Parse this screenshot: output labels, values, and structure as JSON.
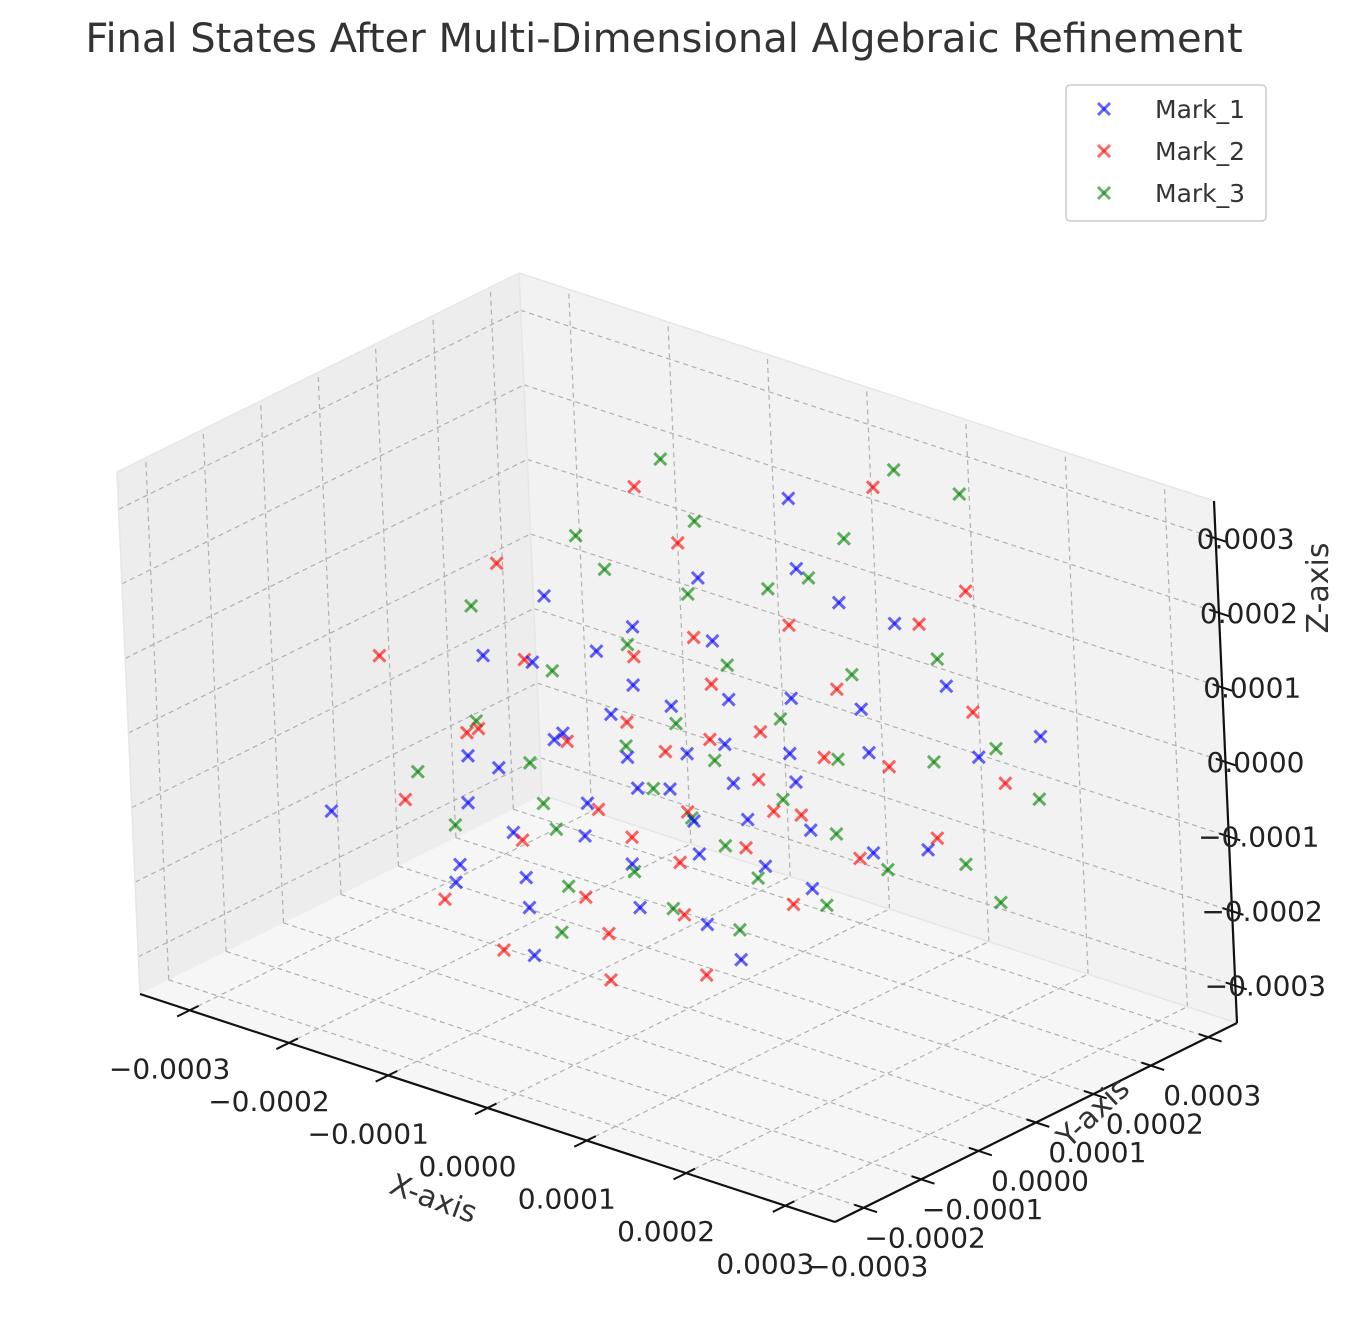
{
  "chart_data": {
    "type": "scatter",
    "title": "Final States After Multi-Dimensional Algebraic Refinement",
    "xlabel": "X-axis",
    "ylabel": "Y-axis",
    "zlabel": "Z-axis",
    "xlim": [
      -0.00035,
      0.00035
    ],
    "ylim": [
      -0.00035,
      0.00035
    ],
    "zlim": [
      -0.00035,
      0.00035
    ],
    "x_ticks": [
      "−0.0003",
      "−0.0002",
      "−0.0001",
      "0.0000",
      "0.0001",
      "0.0002",
      "0.0003"
    ],
    "y_ticks": [
      "−0.0003",
      "−0.0002",
      "−0.0001",
      "0.0000",
      "0.0001",
      "0.0002",
      "0.0003"
    ],
    "z_ticks": [
      "−0.0003",
      "−0.0002",
      "−0.0001",
      "0.0000",
      "0.0001",
      "0.0002",
      "0.0003"
    ],
    "x_tick_values": [
      -0.0003,
      -0.0002,
      -0.0001,
      0,
      0.0001,
      0.0002,
      0.0003
    ],
    "y_tick_values": [
      -0.0003,
      -0.0002,
      -0.0001,
      0,
      0.0001,
      0.0002,
      0.0003
    ],
    "z_tick_values": [
      -0.0003,
      -0.0002,
      -0.0001,
      0,
      0.0001,
      0.0002,
      0.0003
    ],
    "grid": true,
    "legend_position": "top-right",
    "marker": "x",
    "series": [
      {
        "name": "Mark_1",
        "color": "#0000ff",
        "points": [
          [
            -0.00029,
            -0.00011,
            -0.00017
          ],
          [
            -0.000205,
            -1.5e-05,
            -9.5e-05
          ],
          [
            -0.00021,
            0.000135,
            6e-05
          ],
          [
            -0.000195,
            2e-05,
            -0.00012
          ],
          [
            -0.00017,
            -9.5e-05,
            -0.000195
          ],
          [
            -0.00016,
            -0.00012,
            -0.000205
          ],
          [
            -0.00015,
            1e-05,
            4.5e-05
          ],
          [
            -0.00014,
            2.5e-05,
            -6e-05
          ],
          [
            -0.000135,
            -6e-05,
            -0.00015
          ],
          [
            -0.00012,
            7e-05,
            5e-05
          ],
          [
            -0.00011,
            -1e-05,
            -2.5e-05
          ],
          [
            -0.0001,
            0.0001,
            8e-05
          ],
          [
            -9e-05,
            4e-05,
            -1e-05
          ],
          [
            -8e-05,
            -0.00013,
            -0.0002
          ],
          [
            -7.5e-05,
            5.5e-05,
            3e-05
          ],
          [
            -7e-05,
            -4e-05,
            -9e-05
          ],
          [
            -6e-05,
            1.5e-05,
            -4.5e-05
          ],
          [
            -5.5e-05,
            0.00014,
            0.00015
          ],
          [
            -5e-05,
            -8e-05,
            -0.00011
          ],
          [
            -4e-05,
            6e-05,
            1.5e-05
          ],
          [
            -3e-05,
            -2e-05,
            -6e-05
          ],
          [
            -2.5e-05,
            0.00011,
            9e-05
          ],
          [
            -1.5e-05,
            -6e-05,
            -0.00014
          ],
          [
            -5e-06,
            2.5e-05,
            -2e-05
          ],
          [
            0.0,
            -1.5e-05,
            -5e-05
          ],
          [
            1e-05,
            7.5e-05,
            4e-05
          ],
          [
            1.5e-05,
            -0.0001,
            -0.00017
          ],
          [
            2.5e-05,
            4e-05,
            0.0
          ],
          [
            3.5e-05,
            -3.5e-05,
            -7e-05
          ],
          [
            4e-05,
            0.00015,
            0.0002
          ],
          [
            5e-05,
            1e-05,
            -3e-05
          ],
          [
            6e-05,
            -7e-05,
            -9e-05
          ],
          [
            6.5e-05,
            9e-05,
            6e-05
          ],
          [
            7.5e-05,
            -1e-05,
            -6e-05
          ],
          [
            8.5e-05,
            5e-05,
            1e-05
          ],
          [
            9.5e-05,
            -0.00012,
            -0.00015
          ],
          [
            0.000105,
            2.5e-05,
            -1e-05
          ],
          [
            0.000115,
            -5e-05,
            -9e-05
          ],
          [
            0.00013,
            0.0001,
            7e-05
          ],
          [
            0.000145,
            -2e-05,
            -4e-05
          ],
          [
            0.00016,
            6e-05,
            4e-05
          ],
          [
            0.00018,
            -8e-05,
            -8e-05
          ],
          [
            0.0002,
            0.00013,
            0.00012
          ],
          [
            0.00022,
            -4e-05,
            -3e-05
          ],
          [
            0.00026,
            8e-05,
            7e-05
          ],
          [
            0.0003,
            0.00012,
            0.0001
          ],
          [
            -0.00023,
            6e-05,
            0.0
          ],
          [
            -0.00018,
            -6e-05,
            -0.00013
          ],
          [
            -0.0001,
            -0.0001,
            -0.00018
          ],
          [
            7e-05,
            0.00017,
            0.00016
          ],
          [
            0.00014,
            -0.00014,
            -0.00017
          ],
          [
            0.00024,
            2e-05,
            -4e-05
          ],
          [
            -6.5e-05,
            -0.00015,
            -0.00025
          ],
          [
            5e-06,
            0.0002,
            0.00026
          ],
          [
            0.00012,
            0.00018,
            0.00015
          ]
        ]
      },
      {
        "name": "Mark_2",
        "color": "#ff0000",
        "points": [
          [
            -0.00033,
            5e-05,
            -4e-05
          ],
          [
            -0.00025,
            -5e-05,
            -0.00016
          ],
          [
            -0.00026,
            0.00014,
            8e-05
          ],
          [
            -0.0002,
            8e-05,
            0.0
          ],
          [
            -0.00019,
            -2e-05,
            -5e-05
          ],
          [
            -0.00016,
            -0.00014,
            -0.00022
          ],
          [
            -0.00014,
            0.00018,
            0.00022
          ],
          [
            -0.00013,
            3e-05,
            -6e-05
          ],
          [
            -0.00012,
            -7e-05,
            -0.00015
          ],
          [
            -0.0001,
            0.0001,
            4e-05
          ],
          [
            -9e-05,
            -0.00016,
            -0.00025
          ],
          [
            -8e-05,
            5e-05,
            -2e-05
          ],
          [
            -6.5e-05,
            -3e-05,
            -0.0001
          ],
          [
            -5e-05,
            0.00012,
            8e-05
          ],
          [
            -4e-05,
            -0.0001,
            -0.00018
          ],
          [
            -3e-05,
            3e-05,
            -3e-05
          ],
          [
            -2e-05,
            -5e-05,
            -0.00011
          ],
          [
            -1e-05,
            8e-05,
            5e-05
          ],
          [
            0.0,
            -0.00013,
            -0.0002
          ],
          [
            1e-05,
            4e-05,
            0.0
          ],
          [
            2e-05,
            -2e-05,
            -7e-05
          ],
          [
            3e-05,
            0.00015,
            0.00012
          ],
          [
            4e-05,
            -7e-05,
            -0.00011
          ],
          [
            5e-05,
            6e-05,
            2e-05
          ],
          [
            6e-05,
            -0.0001,
            -0.00016
          ],
          [
            7e-05,
            2e-05,
            -2e-05
          ],
          [
            8e-05,
            0.00022,
            0.0003
          ],
          [
            9e-05,
            -4e-05,
            -8e-05
          ],
          [
            0.0001,
            0.00011,
            8e-05
          ],
          [
            0.00011,
            -0.00015,
            -0.0002
          ],
          [
            0.00012,
            5e-05,
            2e-05
          ],
          [
            0.00013,
            -1e-05,
            -3e-05
          ],
          [
            0.000145,
            0.00018,
            0.00016
          ],
          [
            0.00016,
            -8e-05,
            -0.00011
          ],
          [
            0.00018,
            6e-05,
            3e-05
          ],
          [
            0.0002,
            -3e-05,
            -5e-05
          ],
          [
            0.00022,
            0.00014,
            9e-05
          ],
          [
            0.00025,
            2e-05,
            -2e-05
          ],
          [
            0.00028,
            9e-05,
            4e-05
          ],
          [
            -0.00011,
            0.0002,
            0.00015
          ],
          [
            3e-05,
            -0.00018,
            -0.00023
          ],
          [
            0.00017,
            0.00022,
            0.0002
          ],
          [
            -0.00022,
            1e-05,
            -8e-05
          ],
          [
            9e-05,
            1e-05,
            -5e-05
          ]
        ]
      },
      {
        "name": "Mark_3",
        "color": "#008000",
        "points": [
          [
            -0.00027,
            0.00011,
            3e-05
          ],
          [
            -0.00023,
            -6e-05,
            -0.00011
          ],
          [
            -0.00021,
            1e-05,
            -6e-05
          ],
          [
            -0.00019,
            0.00016,
            0.00014
          ],
          [
            -0.00017,
            -0.0001,
            -0.00014
          ],
          [
            -0.00016,
            6e-05,
            1e-05
          ],
          [
            -0.000145,
            -1e-05,
            -8e-05
          ],
          [
            -0.00013,
            0.00021,
            0.00025
          ],
          [
            -0.000115,
            -4e-05,
            -0.00011
          ],
          [
            -0.0001,
            9e-05,
            6e-05
          ],
          [
            -8.5e-05,
            -7e-05,
            -0.00012
          ],
          [
            -7e-05,
            3e-05,
            -4e-05
          ],
          [
            -6e-05,
            0.00013,
            0.00013
          ],
          [
            -4.5e-05,
            -0.00012,
            -0.00016
          ],
          [
            -3e-05,
            5e-05,
            0.0
          ],
          [
            -2e-05,
            -1e-05,
            -6e-05
          ],
          [
            -5e-06,
            0.0001,
            7e-05
          ],
          [
            5e-06,
            -9e-05,
            -0.00013
          ],
          [
            2e-05,
            3e-05,
            -2e-05
          ],
          [
            3e-05,
            -3e-05,
            -7e-05
          ],
          [
            4e-05,
            0.00017,
            0.00018
          ],
          [
            5.5e-05,
            -0.00011,
            -0.00015
          ],
          [
            6.5e-05,
            7e-05,
            4e-05
          ],
          [
            7.5e-05,
            -5e-05,
            -8e-05
          ],
          [
            9e-05,
            0.00024,
            0.00032
          ],
          [
            0.0001,
            1e-05,
            -3e-05
          ],
          [
            0.00011,
            0.00012,
            0.0001
          ],
          [
            0.000125,
            -8e-05,
            -9e-05
          ],
          [
            0.00014,
            4e-05,
            3e-05
          ],
          [
            0.00015,
            0.00025,
            0.00031
          ],
          [
            0.000165,
            -1e-05,
            -4e-05
          ],
          [
            0.00018,
            0.00015,
            0.00014
          ],
          [
            0.0002,
            -9e-05,
            -9e-05
          ],
          [
            0.00022,
            7e-05,
            5e-05
          ],
          [
            0.00024,
            -5e-05,
            -4e-05
          ],
          [
            0.00026,
            0.00011,
            7e-05
          ],
          [
            0.00029,
            0.0,
            -3e-05
          ],
          [
            0.00032,
            8e-05,
            4e-05
          ],
          [
            0.00033,
            -1e-05,
            -6e-05
          ],
          [
            -8e-05,
            0.00018,
            0.0002
          ],
          [
            6e-05,
            0.0002,
            0.00023
          ],
          [
            -0.00015,
            0.00014,
            0.00012
          ],
          [
            1e-05,
            0.00015,
            0.00016
          ],
          [
            -3e-05,
            -0.00016,
            -0.0002
          ],
          [
            0.00014,
            -0.00014,
            -0.00013
          ]
        ]
      }
    ]
  }
}
